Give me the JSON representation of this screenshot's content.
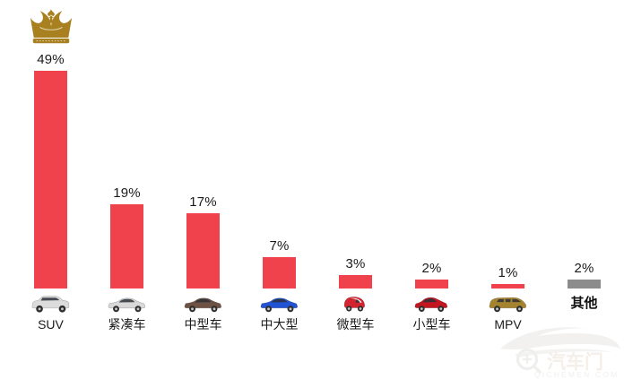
{
  "chart_data": {
    "type": "bar",
    "title": "",
    "xlabel": "",
    "ylabel": "",
    "unit": "%",
    "categories": [
      "SUV",
      "紧凑车",
      "中型车",
      "中大型",
      "微型车",
      "小型车",
      "MPV",
      "其他"
    ],
    "values": [
      49,
      19,
      17,
      7,
      3,
      2,
      1,
      2
    ],
    "value_labels": [
      "49%",
      "19%",
      "17%",
      "7%",
      "3%",
      "2%",
      "1%",
      "2%"
    ],
    "ylim": [
      0,
      50
    ],
    "grid": false,
    "legend": false,
    "axes_visible": false,
    "annotations": [
      "gold crown marker above the SUV bar (top category)"
    ],
    "bar_color_default": "#F0424D",
    "bar_color_other": "#8C8C8C"
  },
  "columns": [
    {
      "slug": "suv",
      "name": "SUV",
      "value": 49,
      "label": "49%",
      "icon": "suv",
      "icon_color": "#dcdcdc",
      "bar_color": "#F0424D",
      "crown": true,
      "bold": false
    },
    {
      "slug": "compact",
      "name": "紧凑车",
      "value": 19,
      "label": "19%",
      "icon": "sedan",
      "icon_color": "#d9d9d9",
      "bar_color": "#F0424D",
      "crown": false,
      "bold": false
    },
    {
      "slug": "midsize",
      "name": "中型车",
      "value": 17,
      "label": "17%",
      "icon": "sedan",
      "icon_color": "#6e5243",
      "bar_color": "#F0424D",
      "crown": false,
      "bold": false
    },
    {
      "slug": "mid-large",
      "name": "中大型",
      "value": 7,
      "label": "7%",
      "icon": "sedan",
      "icon_color": "#2153d4",
      "bar_color": "#F0424D",
      "crown": false,
      "bold": false
    },
    {
      "slug": "micro",
      "name": "微型车",
      "value": 3,
      "label": "3%",
      "icon": "mini",
      "icon_color": "#d42430",
      "bar_color": "#F0424D",
      "crown": false,
      "bold": false
    },
    {
      "slug": "small",
      "name": "小型车",
      "value": 2,
      "label": "2%",
      "icon": "hatch",
      "icon_color": "#c4161f",
      "bar_color": "#F0424D",
      "crown": false,
      "bold": false
    },
    {
      "slug": "mpv",
      "name": "MPV",
      "value": 1,
      "label": "1%",
      "icon": "mpv",
      "icon_color": "#a6832e",
      "bar_color": "#F0424D",
      "crown": false,
      "bold": false
    },
    {
      "slug": "other",
      "name": "其他",
      "value": 2,
      "label": "2%",
      "icon": null,
      "icon_color": null,
      "bar_color": "#8C8C8C",
      "crown": false,
      "bold": true
    }
  ],
  "icons": {
    "crown": "crown-icon",
    "watermark_magnifier": "magnifier-icon",
    "watermark_car": "car-silhouette-icon"
  },
  "colors": {
    "bar_red": "#F0424D",
    "bar_gray": "#8C8C8C",
    "crown_gold": "#A9801F",
    "text": "#1a1a1a",
    "watermark": "#f1f0ee"
  },
  "watermark": {
    "brand": "汽车门",
    "domain": "QICHEMEN.COM"
  }
}
